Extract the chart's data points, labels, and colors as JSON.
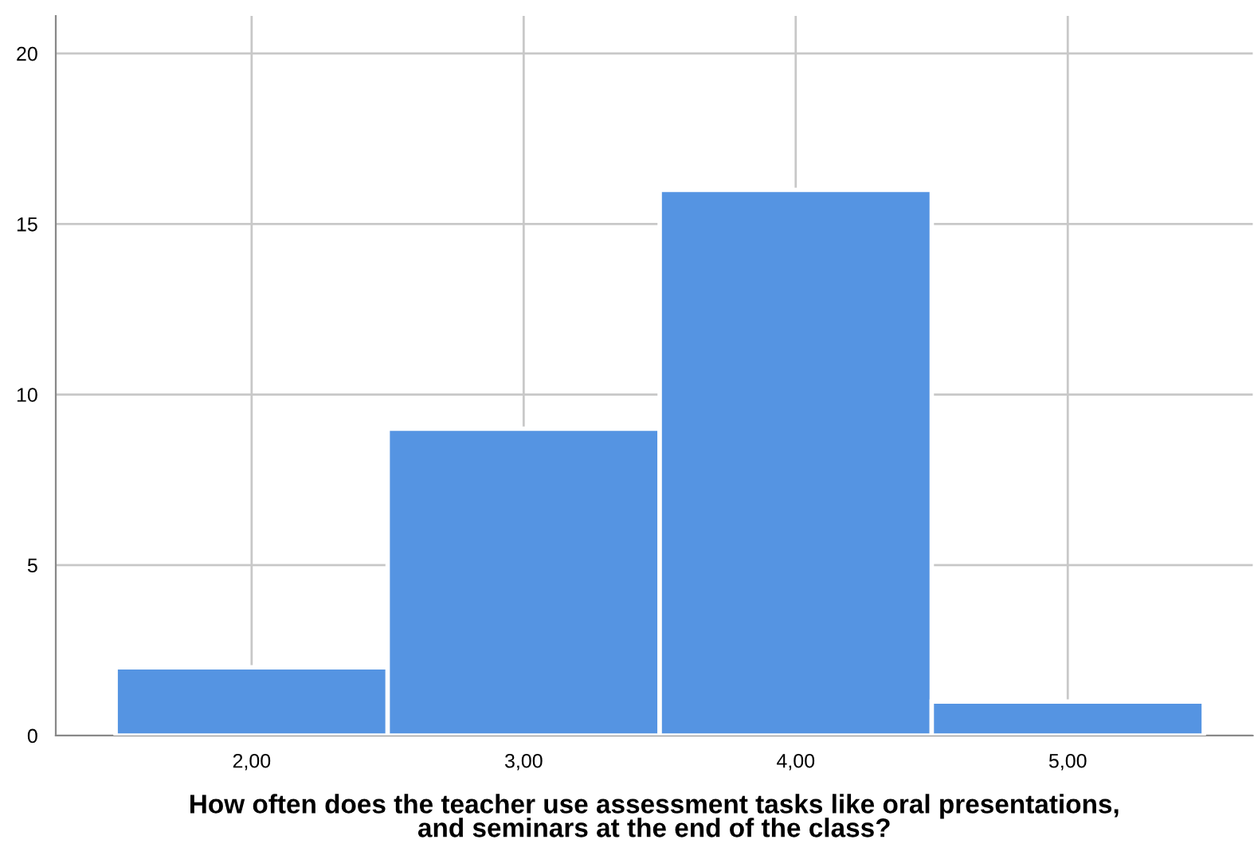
{
  "chart_data": {
    "type": "histogram",
    "xlabel": "How often does the teacher use assessment tasks like oral presentations,\nand seminars at the end of the class?",
    "bins": [
      1.5,
      2.5,
      3.5,
      4.5,
      5.5
    ],
    "values": [
      2,
      9,
      16,
      1
    ],
    "color": "#5594e2",
    "xlim": [
      1.28,
      5.68
    ],
    "xticks": [
      {
        "value": 2,
        "label": "2,00"
      },
      {
        "value": 3,
        "label": "3,00"
      },
      {
        "value": 4,
        "label": "4,00"
      },
      {
        "value": 5,
        "label": "5,00"
      }
    ],
    "ylim": [
      0,
      21.1
    ],
    "yticks": [
      0,
      5,
      10,
      15,
      20
    ],
    "grid": true
  }
}
